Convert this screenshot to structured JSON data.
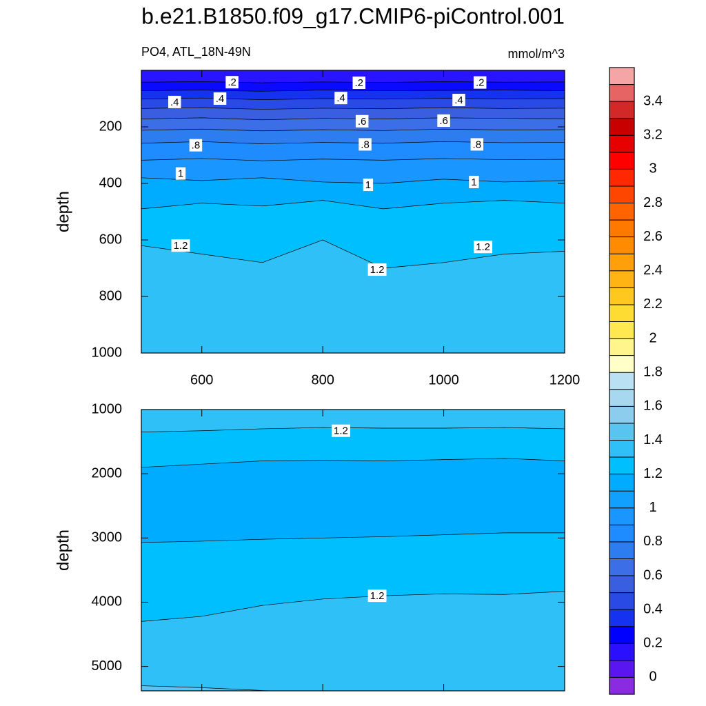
{
  "chart_data": {
    "type": "contour",
    "title": "b.e21.B1850.f09_g17.CMIP6-piControl.001",
    "left_string": "PO4, ATL_18N-49N",
    "right_string": "mmol/m^3",
    "panels": [
      {
        "ylabel": "depth",
        "xlim": [
          500,
          1200
        ],
        "xticks": [
          600,
          800,
          1000,
          1200
        ],
        "xtick_labels": true,
        "ylim": [
          0,
          1000
        ],
        "yticks": [
          200,
          400,
          600,
          800,
          1000
        ],
        "x": [
          500,
          600,
          700,
          800,
          900,
          1000,
          1100,
          1200
        ],
        "fill_top": "#2814ff",
        "contours": [
          {
            "level": 0.2,
            "fill_below": "#0a0aff",
            "depths": [
              42,
              40,
              44,
              41,
              43,
              40,
              42,
              41
            ]
          },
          {
            "level": 0.3,
            "fill_below": "#1432f0",
            "depths": [
              72,
              70,
              74,
              70,
              72,
              71,
              70,
              72
            ]
          },
          {
            "level": 0.4,
            "fill_below": "#2a4ae6",
            "depths": [
              102,
              98,
              104,
              100,
              102,
              99,
              101,
              100
            ]
          },
          {
            "level": 0.5,
            "fill_below": "#3a5ee0",
            "depths": [
              135,
              132,
              138,
              134,
              136,
              132,
              135,
              134
            ]
          },
          {
            "level": 0.6,
            "fill_below": "#3c6ee8",
            "depths": [
              172,
              168,
              175,
              170,
              172,
              168,
              170,
              171
            ]
          },
          {
            "level": 0.7,
            "fill_below": "#2d7df0",
            "depths": [
              212,
              208,
              214,
              210,
              213,
              208,
              211,
              210
            ]
          },
          {
            "level": 0.8,
            "fill_below": "#1e8cff",
            "depths": [
              258,
              252,
              260,
              255,
              258,
              252,
              256,
              255
            ]
          },
          {
            "level": 0.9,
            "fill_below": "#1996ff",
            "depths": [
              318,
              312,
              320,
              314,
              318,
              312,
              316,
              315
            ]
          },
          {
            "level": 1,
            "fill_below": "#00acff",
            "depths": [
              380,
              390,
              380,
              395,
              400,
              385,
              395,
              390
            ]
          },
          {
            "level": 1.1,
            "fill_below": "#00bfff",
            "depths": [
              490,
              470,
              480,
              460,
              490,
              470,
              460,
              470
            ]
          },
          {
            "level": 1.2,
            "fill_below": "#30c0f8",
            "depths": [
              620,
              650,
              680,
              600,
              700,
              680,
              650,
              640
            ]
          }
        ],
        "contour_labels": [
          {
            "value": 0.2,
            "label": ".2",
            "x": 650,
            "depth": 42
          },
          {
            "value": 0.2,
            "label": ".2",
            "x": 860,
            "depth": 44
          },
          {
            "value": 0.2,
            "label": ".2",
            "x": 1060,
            "depth": 43
          },
          {
            "value": 0.4,
            "label": ".4",
            "x": 555,
            "depth": 112
          },
          {
            "value": 0.4,
            "label": ".4",
            "x": 630,
            "depth": 100
          },
          {
            "value": 0.4,
            "label": ".4",
            "x": 830,
            "depth": 98
          },
          {
            "value": 0.4,
            "label": ".4",
            "x": 1025,
            "depth": 105
          },
          {
            "value": 0.6,
            "label": ".6",
            "x": 865,
            "depth": 180
          },
          {
            "value": 0.6,
            "label": ".6",
            "x": 1000,
            "depth": 178
          },
          {
            "value": 0.8,
            "label": ".8",
            "x": 590,
            "depth": 265
          },
          {
            "value": 0.8,
            "label": ".8",
            "x": 870,
            "depth": 262
          },
          {
            "value": 0.8,
            "label": ".8",
            "x": 1055,
            "depth": 262
          },
          {
            "value": 1,
            "x": 565,
            "depth": 365
          },
          {
            "value": 1,
            "x": 875,
            "depth": 405
          },
          {
            "value": 1,
            "x": 1050,
            "depth": 395
          },
          {
            "value": 1.2,
            "x": 565,
            "depth": 620
          },
          {
            "value": 1.2,
            "x": 890,
            "depth": 705
          },
          {
            "value": 1.2,
            "x": 1065,
            "depth": 625
          }
        ]
      },
      {
        "ylabel": "depth",
        "xlim": [
          500,
          1200
        ],
        "xticks": [
          600,
          800,
          1000,
          1200
        ],
        "xtick_labels": false,
        "ylim": [
          1000,
          5380
        ],
        "yticks": [
          1000,
          2000,
          3000,
          4000,
          5000
        ],
        "x": [
          500,
          600,
          700,
          800,
          900,
          1000,
          1100,
          1200
        ],
        "fill_top": "#30c0f8",
        "contours": [
          {
            "level": 1.2,
            "fill_below": "#00bfff",
            "depths": [
              1350,
              1330,
              1300,
              1280,
              1290,
              1290,
              1280,
              1300
            ]
          },
          {
            "level": 1.1,
            "fill_below": "#00acff",
            "depths": [
              1900,
              1850,
              1800,
              1790,
              1800,
              1780,
              1760,
              1800
            ]
          },
          {
            "level": 1.1,
            "fill_below": "#00bfff",
            "depths": [
              3070,
              3050,
              3020,
              3000,
              2980,
              2950,
              2920,
              2920
            ]
          },
          {
            "level": 1.2,
            "fill_below": "#30c0f8",
            "depths": [
              4300,
              4220,
              4050,
              3950,
              3900,
              3870,
              3880,
              3830
            ]
          },
          {
            "level": 1.3,
            "fill_below": "#5ac4f0",
            "depths": [
              5300,
              5330,
              5375,
              5400,
              5400,
              5400,
              5400,
              5400
            ]
          }
        ],
        "contour_labels": [
          {
            "value": 1.2,
            "x": 830,
            "depth": 1330
          },
          {
            "value": 1.2,
            "x": 890,
            "depth": 3900
          }
        ]
      }
    ],
    "colorbar": {
      "levels": [
        0,
        0.1,
        0.2,
        0.3,
        0.4,
        0.5,
        0.6,
        0.7,
        0.8,
        0.9,
        1,
        1.1,
        1.2,
        1.3,
        1.4,
        1.5,
        1.6,
        1.7,
        1.8,
        1.9,
        2,
        2.1,
        2.2,
        2.3,
        2.4,
        2.5,
        2.6,
        2.7,
        2.8,
        2.9,
        3,
        3.1,
        3.2,
        3.3,
        3.4,
        3.5
      ],
      "colors": [
        "#8a2be2",
        "#5a16f0",
        "#2a10ff",
        "#0000ff",
        "#1432f0",
        "#2a4ae6",
        "#3a5ee0",
        "#3c6ee8",
        "#2d7df0",
        "#1e8cff",
        "#1996ff",
        "#12a0ff",
        "#00acff",
        "#00bfff",
        "#30c0f8",
        "#5ac4f0",
        "#8ccdee",
        "#a8d8f0",
        "#bae0f4",
        "#ffffc8",
        "#fff58c",
        "#ffe850",
        "#ffdc32",
        "#ffc81e",
        "#ffb414",
        "#ffa00a",
        "#ff8c00",
        "#ff7800",
        "#ff6400",
        "#ff4600",
        "#ff2800",
        "#ff0000",
        "#e60000",
        "#c80000",
        "#d22828",
        "#e66464",
        "#f5a5a5"
      ]
    }
  }
}
